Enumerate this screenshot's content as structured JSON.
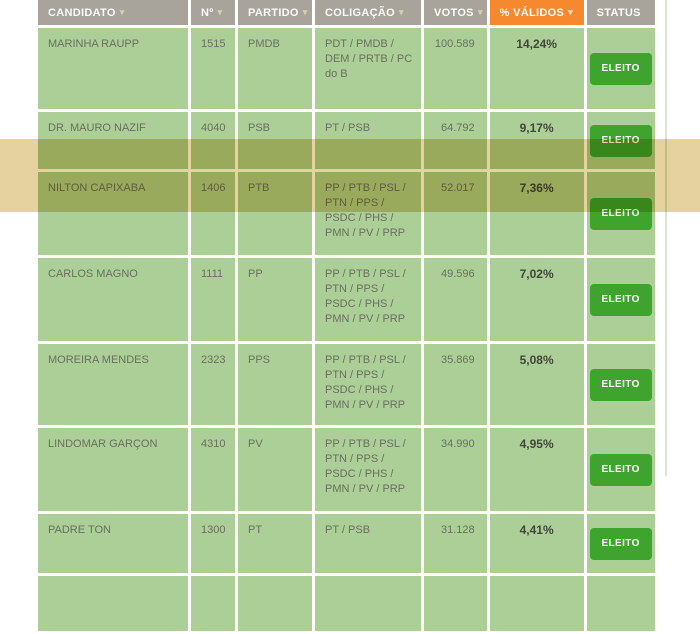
{
  "table": {
    "headers": [
      {
        "label": "CANDIDATO",
        "sort_arrow": true,
        "highlighted": false
      },
      {
        "label": "Nº",
        "sort_arrow": true,
        "highlighted": false
      },
      {
        "label": "PARTIDO",
        "sort_arrow": true,
        "highlighted": false
      },
      {
        "label": "COLIGAÇÃO",
        "sort_arrow": true,
        "highlighted": false
      },
      {
        "label": "VOTOS",
        "sort_arrow": true,
        "highlighted": false
      },
      {
        "label": "% VÁLIDOS",
        "sort_arrow": true,
        "highlighted": true
      },
      {
        "label": "STATUS",
        "sort_arrow": false,
        "highlighted": false
      }
    ],
    "rows": [
      {
        "candidate": "MARINHA RAUPP",
        "number": "1515",
        "party": "PMDB",
        "coalition": "PDT / PMDB / DEM / PRTB / PC do B",
        "votes": "100.589",
        "pct_valid": "14,24%",
        "status": "ELEITO",
        "highlighted": false
      },
      {
        "candidate": "DR. MAURO NAZIF",
        "number": "4040",
        "party": "PSB",
        "coalition": "PT / PSB",
        "votes": "64.792",
        "pct_valid": "9,17%",
        "status": "ELEITO",
        "highlighted": false
      },
      {
        "candidate": "NILTON CAPIXABA",
        "number": "1406",
        "party": "PTB",
        "coalition": "PP / PTB / PSL / PTN / PPS / PSDC / PHS / PMN / PV / PRP",
        "votes": "52.017",
        "pct_valid": "7,36%",
        "status": "ELEITO",
        "highlighted": true
      },
      {
        "candidate": "CARLOS MAGNO",
        "number": "1111",
        "party": "PP",
        "coalition": "PP / PTB / PSL / PTN / PPS / PSDC / PHS / PMN / PV / PRP",
        "votes": "49.596",
        "pct_valid": "7,02%",
        "status": "ELEITO",
        "highlighted": false
      },
      {
        "candidate": "MOREIRA MENDES",
        "number": "2323",
        "party": "PPS",
        "coalition": "PP / PTB / PSL / PTN / PPS / PSDC / PHS / PMN / PV / PRP",
        "votes": "35.869",
        "pct_valid": "5,08%",
        "status": "ELEITO",
        "highlighted": false
      },
      {
        "candidate": "LINDOMAR GARÇON",
        "number": "4310",
        "party": "PV",
        "coalition": "PP / PTB / PSL / PTN / PPS / PSDC / PHS / PMN / PV / PRP",
        "votes": "34.990",
        "pct_valid": "4,95%",
        "status": "ELEITO",
        "highlighted": false
      },
      {
        "candidate": "PADRE TON",
        "number": "1300",
        "party": "PT",
        "coalition": "PT / PSB",
        "votes": "31.128",
        "pct_valid": "4,41%",
        "status": "ELEITO",
        "highlighted": false
      },
      {
        "candidate": "",
        "number": "",
        "party": "",
        "coalition": "",
        "votes": "",
        "pct_valid": "",
        "status": "",
        "highlighted": false,
        "partial": true
      }
    ]
  },
  "colors": {
    "header_bg": "#a9a49b",
    "sorted_header_bg": "#f6892f",
    "row_bg": "#abcf96",
    "elected_button_bg": "#3fa42d",
    "row_highlight_overlay": "#e6d29e",
    "cell_text": "#6b6f60",
    "pct_text": "#43463a"
  }
}
